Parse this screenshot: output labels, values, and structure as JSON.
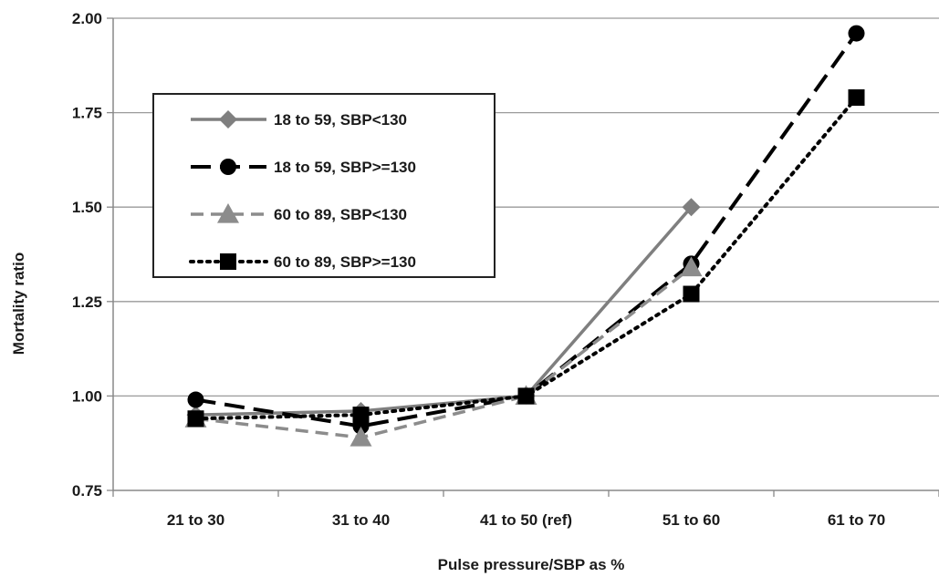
{
  "chart_data": {
    "type": "line",
    "title": "",
    "xlabel": "Pulse pressure/SBP as %",
    "ylabel": "Mortality ratio",
    "categories": [
      "21 to 30",
      "31 to 40",
      "41 to 50 (ref)",
      "51 to 60",
      "61 to 70"
    ],
    "ylim": [
      0.75,
      2.0
    ],
    "yticks": [
      "0.75",
      "1.00",
      "1.25",
      "1.50",
      "1.75",
      "2.00"
    ],
    "grid": true,
    "legend_position": "upper-left",
    "series": [
      {
        "name": "18 to 59, SBP<130",
        "values": [
          0.95,
          0.96,
          1.0,
          1.5,
          null
        ],
        "color": "#7f7f7f",
        "dash": "solid",
        "marker": "diamond"
      },
      {
        "name": "18 to 59, SBP>=130",
        "values": [
          0.99,
          0.92,
          1.0,
          1.35,
          1.96
        ],
        "color": "#000000",
        "dash": "long-dash",
        "marker": "circle"
      },
      {
        "name": "60 to 89, SBP<130",
        "values": [
          0.94,
          0.89,
          1.0,
          1.34,
          null
        ],
        "color": "#8c8c8c",
        "dash": "dash",
        "marker": "triangle"
      },
      {
        "name": "60 to 89, SBP>=130",
        "values": [
          0.94,
          0.95,
          1.0,
          1.27,
          1.79
        ],
        "color": "#000000",
        "dash": "dot",
        "marker": "square"
      }
    ]
  }
}
